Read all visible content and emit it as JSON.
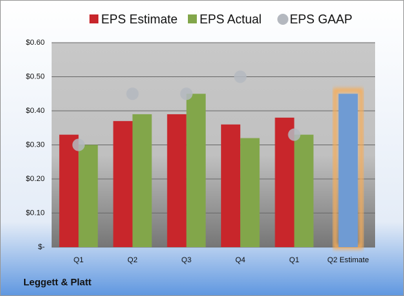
{
  "chart_data": {
    "type": "bar",
    "categories": [
      "Q1",
      "Q2",
      "Q3",
      "Q4",
      "Q1",
      "Q2 Estimate"
    ],
    "series": [
      {
        "name": "EPS Estimate",
        "color": "#c8262b",
        "values": [
          0.33,
          0.37,
          0.39,
          0.36,
          0.38,
          0.45
        ],
        "colors": [
          "#c8262b",
          "#c8262b",
          "#c8262b",
          "#c8262b",
          "#c8262b",
          "#6f9bd3"
        ],
        "glow": [
          null,
          null,
          null,
          null,
          null,
          "#f6ad5a"
        ]
      },
      {
        "name": "EPS Actual",
        "color": "#82a64a",
        "values": [
          0.3,
          0.39,
          0.45,
          0.32,
          0.33,
          null
        ]
      },
      {
        "name": "EPS GAAP",
        "color": "#b4b8bf",
        "marker": "circle",
        "values": [
          0.3,
          0.45,
          0.45,
          0.5,
          0.33,
          null
        ]
      }
    ],
    "ylim": [
      0,
      0.6
    ],
    "yticks": [
      {
        "value": 0,
        "label": "$-"
      },
      {
        "value": 0.1,
        "label": "$0.10"
      },
      {
        "value": 0.2,
        "label": "$0.20"
      },
      {
        "value": 0.3,
        "label": "$0.30"
      },
      {
        "value": 0.4,
        "label": "$0.40"
      },
      {
        "value": 0.5,
        "label": "$0.50"
      },
      {
        "value": 0.6,
        "label": "$0.60"
      }
    ],
    "grid": true,
    "legend": "top",
    "source": "Leggett & Platt"
  }
}
